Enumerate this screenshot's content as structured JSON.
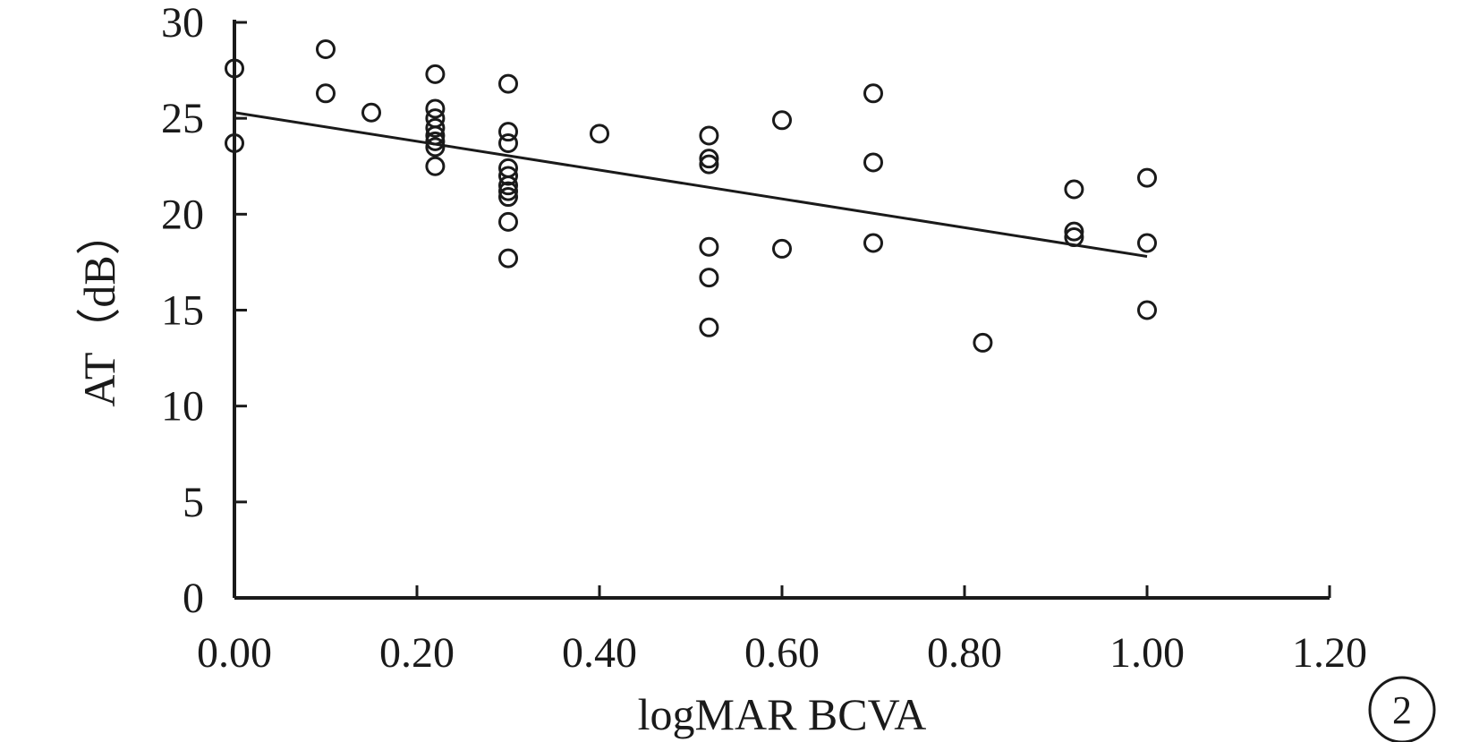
{
  "chart_data": {
    "type": "scatter",
    "xlabel": "logMAR BCVA",
    "ylabel": "AT（dB）",
    "xlim": [
      0,
      1.2
    ],
    "ylim": [
      0,
      30
    ],
    "xticks": [
      "0.00",
      "0.20",
      "0.40",
      "0.60",
      "0.80",
      "1.00",
      "1.20"
    ],
    "yticks": [
      "0",
      "5",
      "10",
      "15",
      "20",
      "25",
      "30"
    ],
    "grid": false,
    "legend": "none",
    "marker": "open-circle",
    "points": [
      {
        "x": 0.0,
        "y": 27.6
      },
      {
        "x": 0.0,
        "y": 23.7
      },
      {
        "x": 0.1,
        "y": 28.6
      },
      {
        "x": 0.1,
        "y": 26.3
      },
      {
        "x": 0.15,
        "y": 25.3
      },
      {
        "x": 0.22,
        "y": 27.3
      },
      {
        "x": 0.22,
        "y": 25.5
      },
      {
        "x": 0.22,
        "y": 25.0
      },
      {
        "x": 0.22,
        "y": 24.5
      },
      {
        "x": 0.22,
        "y": 24.1
      },
      {
        "x": 0.22,
        "y": 23.8
      },
      {
        "x": 0.22,
        "y": 23.5
      },
      {
        "x": 0.22,
        "y": 22.5
      },
      {
        "x": 0.3,
        "y": 26.8
      },
      {
        "x": 0.3,
        "y": 24.3
      },
      {
        "x": 0.3,
        "y": 23.7
      },
      {
        "x": 0.3,
        "y": 22.4
      },
      {
        "x": 0.3,
        "y": 22.0
      },
      {
        "x": 0.3,
        "y": 21.5
      },
      {
        "x": 0.3,
        "y": 21.2
      },
      {
        "x": 0.3,
        "y": 20.9
      },
      {
        "x": 0.3,
        "y": 19.6
      },
      {
        "x": 0.3,
        "y": 17.7
      },
      {
        "x": 0.4,
        "y": 24.2
      },
      {
        "x": 0.52,
        "y": 24.1
      },
      {
        "x": 0.52,
        "y": 22.9
      },
      {
        "x": 0.52,
        "y": 22.6
      },
      {
        "x": 0.52,
        "y": 18.3
      },
      {
        "x": 0.52,
        "y": 16.7
      },
      {
        "x": 0.52,
        "y": 14.1
      },
      {
        "x": 0.6,
        "y": 24.9
      },
      {
        "x": 0.6,
        "y": 18.2
      },
      {
        "x": 0.7,
        "y": 26.3
      },
      {
        "x": 0.7,
        "y": 22.7
      },
      {
        "x": 0.7,
        "y": 18.5
      },
      {
        "x": 0.82,
        "y": 13.3
      },
      {
        "x": 0.92,
        "y": 21.3
      },
      {
        "x": 0.92,
        "y": 19.1
      },
      {
        "x": 0.92,
        "y": 18.8
      },
      {
        "x": 1.0,
        "y": 21.9
      },
      {
        "x": 1.0,
        "y": 18.5
      },
      {
        "x": 1.0,
        "y": 15.0
      }
    ],
    "trendline": {
      "x": [
        0.0,
        1.0
      ],
      "y": [
        25.3,
        17.8
      ]
    },
    "panel_label": "2"
  }
}
